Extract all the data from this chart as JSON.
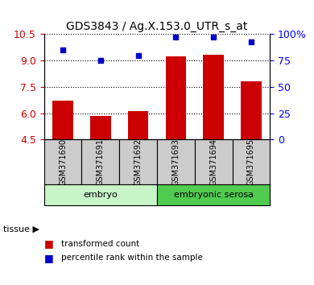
{
  "title": "GDS3843 / Ag.X.153.0_UTR_s_at",
  "samples": [
    "GSM371690",
    "GSM371691",
    "GSM371692",
    "GSM371693",
    "GSM371694",
    "GSM371695"
  ],
  "red_values": [
    6.7,
    5.82,
    6.12,
    9.22,
    9.33,
    7.82
  ],
  "blue_values": [
    85,
    75,
    80,
    97,
    97,
    93
  ],
  "ylim_left": [
    4.5,
    10.5
  ],
  "ylim_right": [
    0,
    100
  ],
  "yticks_left": [
    4.5,
    6.0,
    7.5,
    9.0,
    10.5
  ],
  "yticks_right": [
    0,
    25,
    50,
    75,
    100
  ],
  "ytick_labels_right": [
    "0",
    "25",
    "50",
    "75",
    "100%"
  ],
  "groups": [
    {
      "label": "embryo",
      "start": 0,
      "end": 3,
      "color": "#c8f5c8"
    },
    {
      "label": "embryonic serosa",
      "start": 3,
      "end": 6,
      "color": "#50cc50"
    }
  ],
  "bar_color": "#cc0000",
  "scatter_color": "#0000cc",
  "bar_width": 0.55,
  "legend_items": [
    {
      "color": "#cc0000",
      "label": "transformed count"
    },
    {
      "color": "#0000cc",
      "label": "percentile rank within the sample"
    }
  ]
}
